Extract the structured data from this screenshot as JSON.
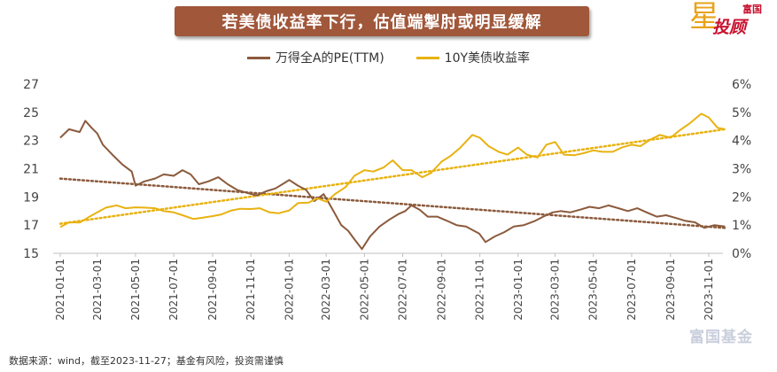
{
  "title": "若美债收益率下行，估值端掣肘或明显缓解",
  "logo": {
    "small": "富国",
    "big": "投顾",
    "star": "星"
  },
  "footnote": "数据来源：wind，截至2023-11-27；基金有风险，投资需谨慎",
  "watermark": "富国基金",
  "colors": {
    "pe": "#8b5a3c",
    "yield": "#e8b211",
    "title_bg": "#a0573a"
  },
  "chart_data": {
    "type": "line",
    "title": "若美债收益率下行，估值端掣肘或明显缓解",
    "legend_position": "top-center",
    "grid": false,
    "y_left": {
      "ylim": [
        15,
        27
      ],
      "ticks": [
        "27",
        "25",
        "23",
        "21",
        "19",
        "17",
        "15"
      ]
    },
    "y_right": {
      "ylim": [
        0,
        6
      ],
      "ticks": [
        "6%",
        "5%",
        "4%",
        "3%",
        "2%",
        "1%",
        "0%"
      ]
    },
    "x_ticks": [
      "2021-01-01",
      "2021-03-01",
      "2021-05-01",
      "2021-07-01",
      "2021-09-01",
      "2021-11-01",
      "2022-01-01",
      "2022-03-01",
      "2022-05-01",
      "2022-07-01",
      "2022-09-01",
      "2022-11-01",
      "2023-01-01",
      "2023-03-01",
      "2023-05-01",
      "2023-07-01",
      "2023-09-01",
      "2023-11-01"
    ],
    "series": [
      {
        "name": "万得全A的PE(TTM)",
        "axis": "left",
        "x": [
          "2021-01-01",
          "2021-01-15",
          "2021-02-01",
          "2021-02-10",
          "2021-02-20",
          "2021-03-01",
          "2021-03-10",
          "2021-03-25",
          "2021-04-10",
          "2021-04-25",
          "2021-05-01",
          "2021-05-15",
          "2021-06-01",
          "2021-06-15",
          "2021-07-01",
          "2021-07-15",
          "2021-07-28",
          "2021-08-10",
          "2021-08-25",
          "2021-09-10",
          "2021-09-25",
          "2021-10-10",
          "2021-10-25",
          "2021-11-10",
          "2021-11-25",
          "2021-12-10",
          "2021-12-25",
          "2022-01-01",
          "2022-01-15",
          "2022-01-28",
          "2022-02-10",
          "2022-02-25",
          "2022-03-05",
          "2022-03-15",
          "2022-03-25",
          "2022-04-05",
          "2022-04-15",
          "2022-04-27",
          "2022-05-10",
          "2022-05-25",
          "2022-06-10",
          "2022-06-25",
          "2022-07-05",
          "2022-07-15",
          "2022-07-28",
          "2022-08-10",
          "2022-08-25",
          "2022-09-10",
          "2022-09-25",
          "2022-10-10",
          "2022-10-31",
          "2022-11-10",
          "2022-11-25",
          "2022-12-10",
          "2022-12-25",
          "2023-01-10",
          "2023-01-28",
          "2023-02-10",
          "2023-02-25",
          "2023-03-10",
          "2023-03-25",
          "2023-04-10",
          "2023-04-25",
          "2023-05-10",
          "2023-05-25",
          "2023-06-10",
          "2023-06-25",
          "2023-07-10",
          "2023-07-25",
          "2023-08-10",
          "2023-08-25",
          "2023-09-10",
          "2023-09-25",
          "2023-10-10",
          "2023-10-25",
          "2023-11-10",
          "2023-11-27"
        ],
        "values": [
          23.2,
          23.8,
          23.6,
          24.4,
          23.9,
          23.5,
          22.7,
          22.0,
          21.3,
          20.8,
          19.8,
          20.1,
          20.3,
          20.6,
          20.5,
          20.9,
          20.6,
          19.9,
          20.1,
          20.4,
          19.9,
          19.5,
          19.3,
          19.1,
          19.4,
          19.6,
          20.0,
          20.2,
          19.8,
          19.5,
          18.7,
          19.2,
          18.6,
          17.8,
          17.0,
          16.6,
          16.0,
          15.3,
          16.2,
          16.9,
          17.4,
          17.8,
          18.0,
          18.4,
          18.1,
          17.6,
          17.6,
          17.3,
          17.0,
          16.9,
          16.4,
          15.8,
          16.2,
          16.5,
          16.9,
          17.0,
          17.3,
          17.6,
          17.9,
          18.0,
          17.9,
          18.1,
          18.3,
          18.2,
          18.4,
          18.2,
          18.0,
          18.2,
          17.9,
          17.6,
          17.7,
          17.5,
          17.3,
          17.2,
          16.8,
          17.0,
          16.9
        ]
      },
      {
        "name": "10Y美债收益率",
        "axis": "right",
        "x": [
          "2021-01-01",
          "2021-01-15",
          "2021-02-01",
          "2021-02-15",
          "2021-03-01",
          "2021-03-15",
          "2021-04-01",
          "2021-04-15",
          "2021-05-01",
          "2021-05-15",
          "2021-06-01",
          "2021-06-15",
          "2021-07-01",
          "2021-07-15",
          "2021-08-01",
          "2021-08-15",
          "2021-09-01",
          "2021-09-15",
          "2021-10-01",
          "2021-10-15",
          "2021-11-01",
          "2021-11-15",
          "2021-12-01",
          "2021-12-15",
          "2022-01-01",
          "2022-01-15",
          "2022-02-01",
          "2022-02-15",
          "2022-03-01",
          "2022-03-15",
          "2022-04-01",
          "2022-04-15",
          "2022-05-01",
          "2022-05-15",
          "2022-06-01",
          "2022-06-15",
          "2022-07-01",
          "2022-07-15",
          "2022-08-01",
          "2022-08-15",
          "2022-09-01",
          "2022-09-15",
          "2022-10-01",
          "2022-10-20",
          "2022-11-01",
          "2022-11-15",
          "2022-12-01",
          "2022-12-15",
          "2023-01-01",
          "2023-01-15",
          "2023-02-01",
          "2023-02-15",
          "2023-03-01",
          "2023-03-15",
          "2023-04-01",
          "2023-04-15",
          "2023-05-01",
          "2023-05-15",
          "2023-06-01",
          "2023-06-15",
          "2023-07-01",
          "2023-07-15",
          "2023-08-01",
          "2023-08-15",
          "2023-09-01",
          "2023-09-15",
          "2023-10-01",
          "2023-10-20",
          "2023-11-01",
          "2023-11-15",
          "2023-11-27"
        ],
        "values": [
          0.93,
          1.1,
          1.09,
          1.28,
          1.45,
          1.62,
          1.7,
          1.6,
          1.63,
          1.62,
          1.6,
          1.5,
          1.45,
          1.35,
          1.22,
          1.26,
          1.32,
          1.38,
          1.52,
          1.58,
          1.57,
          1.6,
          1.45,
          1.42,
          1.52,
          1.78,
          1.8,
          1.95,
          1.83,
          2.1,
          2.35,
          2.75,
          2.95,
          2.9,
          3.05,
          3.3,
          2.95,
          2.95,
          2.7,
          2.85,
          3.25,
          3.45,
          3.75,
          4.2,
          4.1,
          3.8,
          3.6,
          3.5,
          3.75,
          3.5,
          3.4,
          3.85,
          3.95,
          3.5,
          3.48,
          3.55,
          3.65,
          3.6,
          3.6,
          3.75,
          3.85,
          3.8,
          4.05,
          4.2,
          4.1,
          4.35,
          4.6,
          4.95,
          4.82,
          4.45,
          4.4
        ]
      }
    ],
    "trendlines": [
      {
        "series": "万得全A的PE(TTM)",
        "axis": "left",
        "x": [
          "2021-01-01",
          "2023-11-27"
        ],
        "values": [
          20.3,
          16.8
        ]
      },
      {
        "series": "10Y美债收益率",
        "axis": "right",
        "x": [
          "2021-01-01",
          "2023-11-27"
        ],
        "values": [
          1.05,
          4.4
        ]
      }
    ]
  }
}
